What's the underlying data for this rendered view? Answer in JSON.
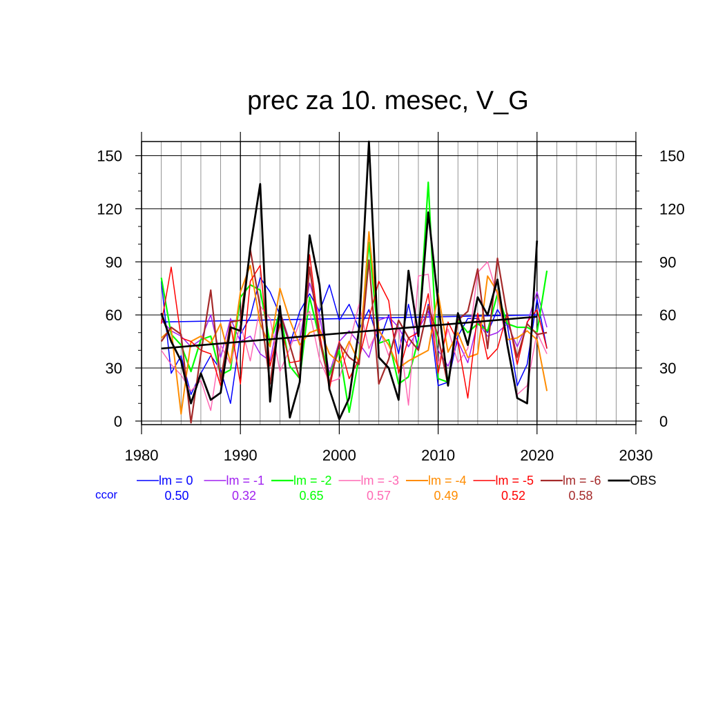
{
  "chart_data": {
    "type": "line",
    "title": "prec za 10. mesec, V_G",
    "xlim": [
      1980,
      2030
    ],
    "ylim": [
      -2,
      158
    ],
    "x_ticks": [
      1980,
      1990,
      2000,
      2010,
      2020,
      2030
    ],
    "y_ticks": [
      0,
      30,
      60,
      90,
      120,
      150
    ],
    "grid": true,
    "legend_position": "bottom",
    "x": [
      1982,
      1983,
      1984,
      1985,
      1986,
      1987,
      1988,
      1989,
      1990,
      1991,
      1992,
      1993,
      1994,
      1995,
      1996,
      1997,
      1998,
      1999,
      2000,
      2001,
      2002,
      2003,
      2004,
      2005,
      2006,
      2007,
      2008,
      2009,
      2010,
      2011,
      2012,
      2013,
      2014,
      2015,
      2016,
      2017,
      2018,
      2019,
      2020,
      2021
    ],
    "series": [
      {
        "name": "lm = 0",
        "color": "#0000ff",
        "width": 1.5,
        "ccor": "0.50",
        "values": [
          79,
          27,
          37,
          15,
          27,
          37,
          29,
          10,
          49,
          59,
          81,
          73,
          60,
          43,
          62,
          72,
          62,
          77,
          57,
          66,
          52,
          63,
          44,
          60,
          38,
          66,
          40,
          66,
          20,
          22,
          48,
          58,
          58,
          50,
          63,
          54,
          20,
          32,
          69,
          41
        ],
        "trend": [
          56.0,
          60.0
        ]
      },
      {
        "name": "lm = -1",
        "color": "#a020f0",
        "width": 1.5,
        "ccor": "0.32",
        "values": [
          57,
          51,
          48,
          42,
          46,
          60,
          36,
          58,
          45,
          48,
          38,
          34,
          62,
          45,
          46,
          78,
          60,
          27,
          45,
          51,
          44,
          36,
          57,
          59,
          53,
          42,
          52,
          62,
          40,
          31,
          45,
          33,
          56,
          48,
          50,
          55,
          42,
          55,
          73,
          53
        ]
      },
      {
        "name": "lm = -2",
        "color": "#00ff00",
        "width": 2.2,
        "ccor": "0.65",
        "values": [
          81,
          49,
          43,
          28,
          46,
          48,
          26,
          29,
          70,
          77,
          74,
          44,
          62,
          31,
          24,
          70,
          47,
          26,
          40,
          5,
          36,
          101,
          44,
          46,
          21,
          25,
          46,
          135,
          24,
          22,
          57,
          50,
          55,
          51,
          72,
          55,
          53,
          53,
          50,
          85
        ]
      },
      {
        "name": "lm = -3",
        "color": "#ff69b4",
        "width": 1.5,
        "ccor": "0.57",
        "values": [
          40,
          32,
          26,
          17,
          23,
          6,
          43,
          32,
          55,
          34,
          65,
          58,
          28,
          41,
          56,
          62,
          35,
          22,
          24,
          43,
          66,
          41,
          53,
          37,
          53,
          9,
          82,
          83,
          32,
          52,
          33,
          41,
          84,
          90,
          71,
          42,
          15,
          20,
          50,
          38
        ]
      },
      {
        "name": "lm = -4",
        "color": "#ff8c00",
        "width": 2.0,
        "ccor": "0.49",
        "values": [
          47,
          52,
          4,
          45,
          48,
          44,
          55,
          33,
          73,
          88,
          55,
          42,
          75,
          57,
          43,
          50,
          52,
          38,
          33,
          45,
          33,
          107,
          51,
          43,
          30,
          34,
          37,
          40,
          72,
          39,
          50,
          36,
          38,
          82,
          73,
          46,
          47,
          51,
          46,
          17
        ]
      },
      {
        "name": "lm = -5",
        "color": "#ff0000",
        "width": 1.5,
        "ccor": "0.52",
        "values": [
          55,
          87,
          47,
          45,
          40,
          38,
          20,
          55,
          21,
          79,
          88,
          31,
          55,
          33,
          34,
          94,
          50,
          18,
          45,
          24,
          35,
          58,
          79,
          68,
          27,
          47,
          50,
          72,
          27,
          56,
          45,
          13,
          61,
          35,
          41,
          61,
          32,
          56,
          63,
          41
        ]
      },
      {
        "name": "lm = -6",
        "color": "#a52a2a",
        "width": 2.2,
        "ccor": "0.58",
        "values": [
          45,
          53,
          49,
          -1,
          38,
          74,
          23,
          56,
          57,
          97,
          64,
          21,
          62,
          43,
          24,
          87,
          46,
          21,
          44,
          36,
          32,
          91,
          21,
          35,
          57,
          47,
          40,
          65,
          48,
          20,
          57,
          62,
          86,
          41,
          92,
          59,
          36,
          55,
          49,
          50
        ]
      },
      {
        "name": "OBS",
        "color": "#000000",
        "width": 2.8,
        "ccor": "",
        "values": [
          61,
          45,
          34,
          10,
          27,
          12,
          16,
          53,
          51,
          98,
          134,
          11,
          65,
          2,
          22,
          105,
          77,
          18,
          1,
          13,
          52,
          158,
          36,
          30,
          12,
          85,
          48,
          118,
          67,
          20,
          61,
          43,
          70,
          60,
          80,
          43,
          13,
          10,
          102,
          null
        ],
        "trend": [
          41.0,
          59.0
        ]
      }
    ],
    "ccor_label": "ccor"
  }
}
